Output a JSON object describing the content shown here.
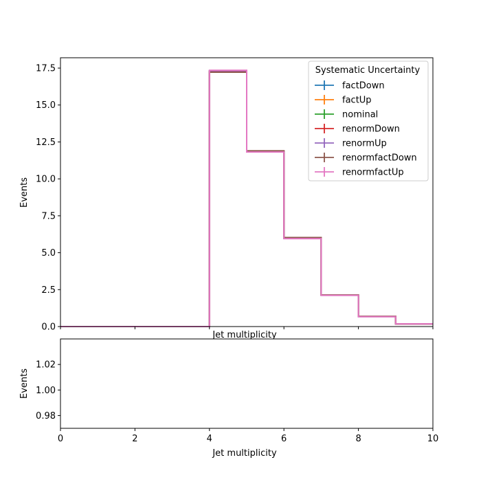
{
  "chart_data": [
    {
      "type": "line",
      "subtype": "step-histogram",
      "xlabel": "Jet multiplicity",
      "ylabel": "Events",
      "xlim": [
        0,
        10
      ],
      "ylim": [
        0,
        18.2
      ],
      "yticks": [
        "0.0",
        "2.5",
        "5.0",
        "7.5",
        "10.0",
        "12.5",
        "15.0",
        "17.5"
      ],
      "legend": {
        "title": "Systematic Uncertainty",
        "placement": "top-right"
      },
      "bin_edges": [
        0,
        1,
        2,
        3,
        4,
        5,
        6,
        7,
        8,
        9,
        10
      ],
      "series": [
        {
          "name": "factDown",
          "color": "#1f77b4",
          "values": [
            0,
            0,
            0,
            0,
            17.28,
            11.86,
            6.0,
            2.13,
            0.68,
            0.18
          ]
        },
        {
          "name": "factUp",
          "color": "#ff7f0e",
          "values": [
            0,
            0,
            0,
            0,
            17.3,
            11.85,
            5.98,
            2.12,
            0.68,
            0.18
          ]
        },
        {
          "name": "nominal",
          "color": "#2ca02c",
          "values": [
            0,
            0,
            0,
            0,
            17.29,
            11.86,
            5.99,
            2.12,
            0.68,
            0.18
          ]
        },
        {
          "name": "renormDown",
          "color": "#d62728",
          "values": [
            0,
            0,
            0,
            0,
            17.25,
            11.88,
            6.01,
            2.13,
            0.68,
            0.18
          ]
        },
        {
          "name": "renormUp",
          "color": "#9467bd",
          "values": [
            0,
            0,
            0,
            0,
            17.32,
            11.84,
            5.97,
            2.12,
            0.67,
            0.18
          ]
        },
        {
          "name": "renormfactDown",
          "color": "#8c564b",
          "values": [
            0,
            0,
            0,
            0,
            17.22,
            11.9,
            6.03,
            2.14,
            0.69,
            0.18
          ]
        },
        {
          "name": "renormfactUp",
          "color": "#e377c2",
          "values": [
            0,
            0,
            0,
            0,
            17.35,
            11.82,
            5.95,
            2.11,
            0.67,
            0.18
          ]
        }
      ]
    },
    {
      "type": "line",
      "subtype": "ratio-panel",
      "xlabel": "Jet multiplicity",
      "ylabel": "Events",
      "xlim": [
        0,
        10
      ],
      "ylim": [
        0.97,
        1.04
      ],
      "xticks": [
        "0",
        "2",
        "4",
        "6",
        "8",
        "10"
      ],
      "yticks": [
        "0.98",
        "1.00",
        "1.02"
      ],
      "series": []
    }
  ]
}
